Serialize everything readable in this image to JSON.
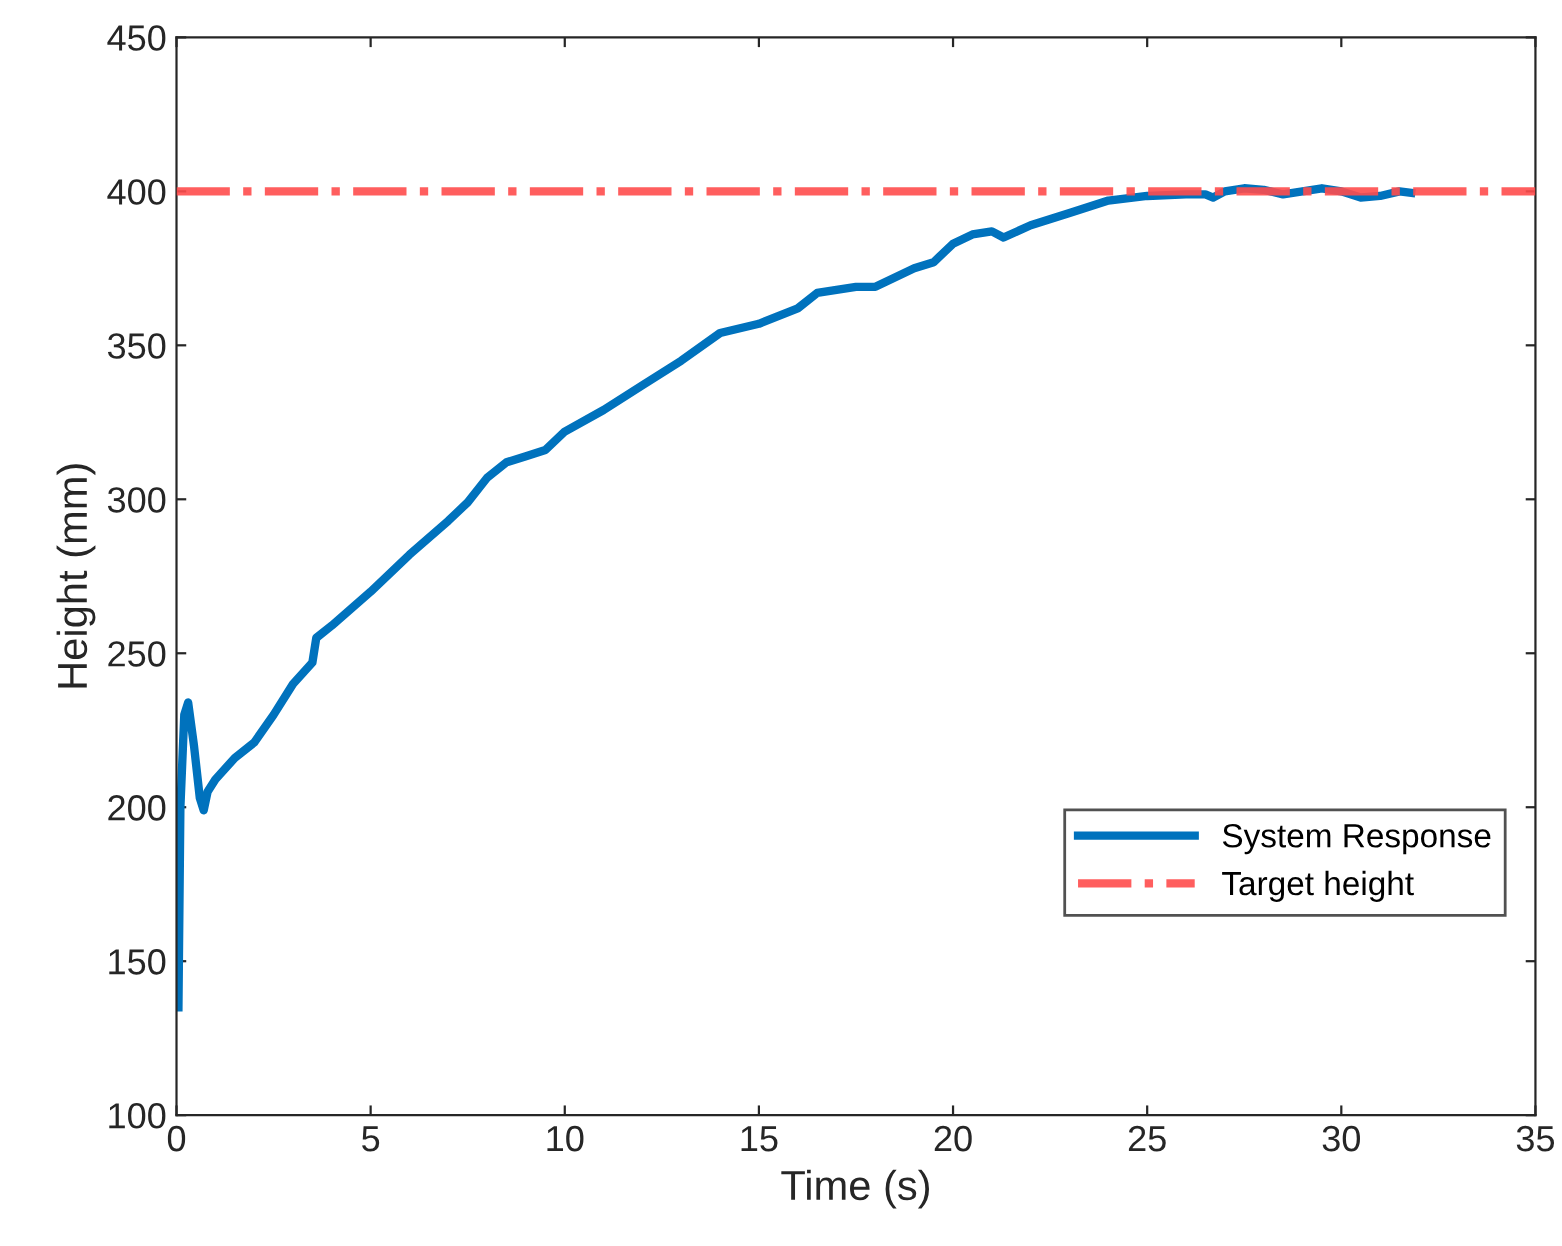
{
  "chart_data": {
    "type": "line",
    "xlabel": "Time (s)",
    "ylabel": "Height (mm)",
    "xlim": [
      0,
      35
    ],
    "ylim": [
      100,
      450
    ],
    "xticks": [
      0,
      5,
      10,
      15,
      20,
      25,
      30,
      35
    ],
    "yticks": [
      100,
      150,
      200,
      250,
      300,
      350,
      400,
      450
    ],
    "grid": false,
    "legend": "bottom right",
    "marker": "none",
    "line_style": "solid",
    "series": [
      {
        "name": "System Response",
        "color": "#0072bd",
        "x": [
          0.05,
          0.1,
          0.2,
          0.3,
          0.45,
          0.6,
          0.7,
          0.8,
          1.0,
          1.5,
          2,
          2.5,
          3,
          3.5,
          3.6,
          4,
          5,
          6,
          7,
          7.5,
          8,
          8.5,
          9,
          9.5,
          10,
          11,
          12,
          13,
          14,
          15,
          16,
          16.5,
          17,
          17.5,
          18,
          19,
          19.5,
          20,
          20.5,
          21,
          21.3,
          22,
          23,
          24,
          25,
          26,
          26.5,
          26.7,
          27,
          27.5,
          28,
          28.5,
          29,
          29.5,
          30,
          30.5,
          31,
          31.5,
          31.8
        ],
        "values": [
          135,
          200,
          230,
          234,
          220,
          203,
          199,
          205,
          209,
          216,
          221,
          230,
          240,
          247,
          255,
          259,
          270,
          282,
          293,
          299,
          307,
          312,
          314,
          316,
          322,
          329,
          337,
          345,
          354,
          357,
          362,
          367,
          368,
          369,
          369,
          375,
          377,
          383,
          386,
          387,
          385,
          389,
          393,
          397,
          398.5,
          399,
          399,
          398,
          400,
          401,
          400.5,
          399,
          400,
          401,
          400,
          398,
          398.5,
          400,
          399.5
        ]
      }
    ],
    "ref_lines": [
      {
        "axis": "y",
        "value": 400,
        "label": "Target height",
        "color": "#ff4d4d",
        "line_style": "dashdot"
      }
    ]
  }
}
